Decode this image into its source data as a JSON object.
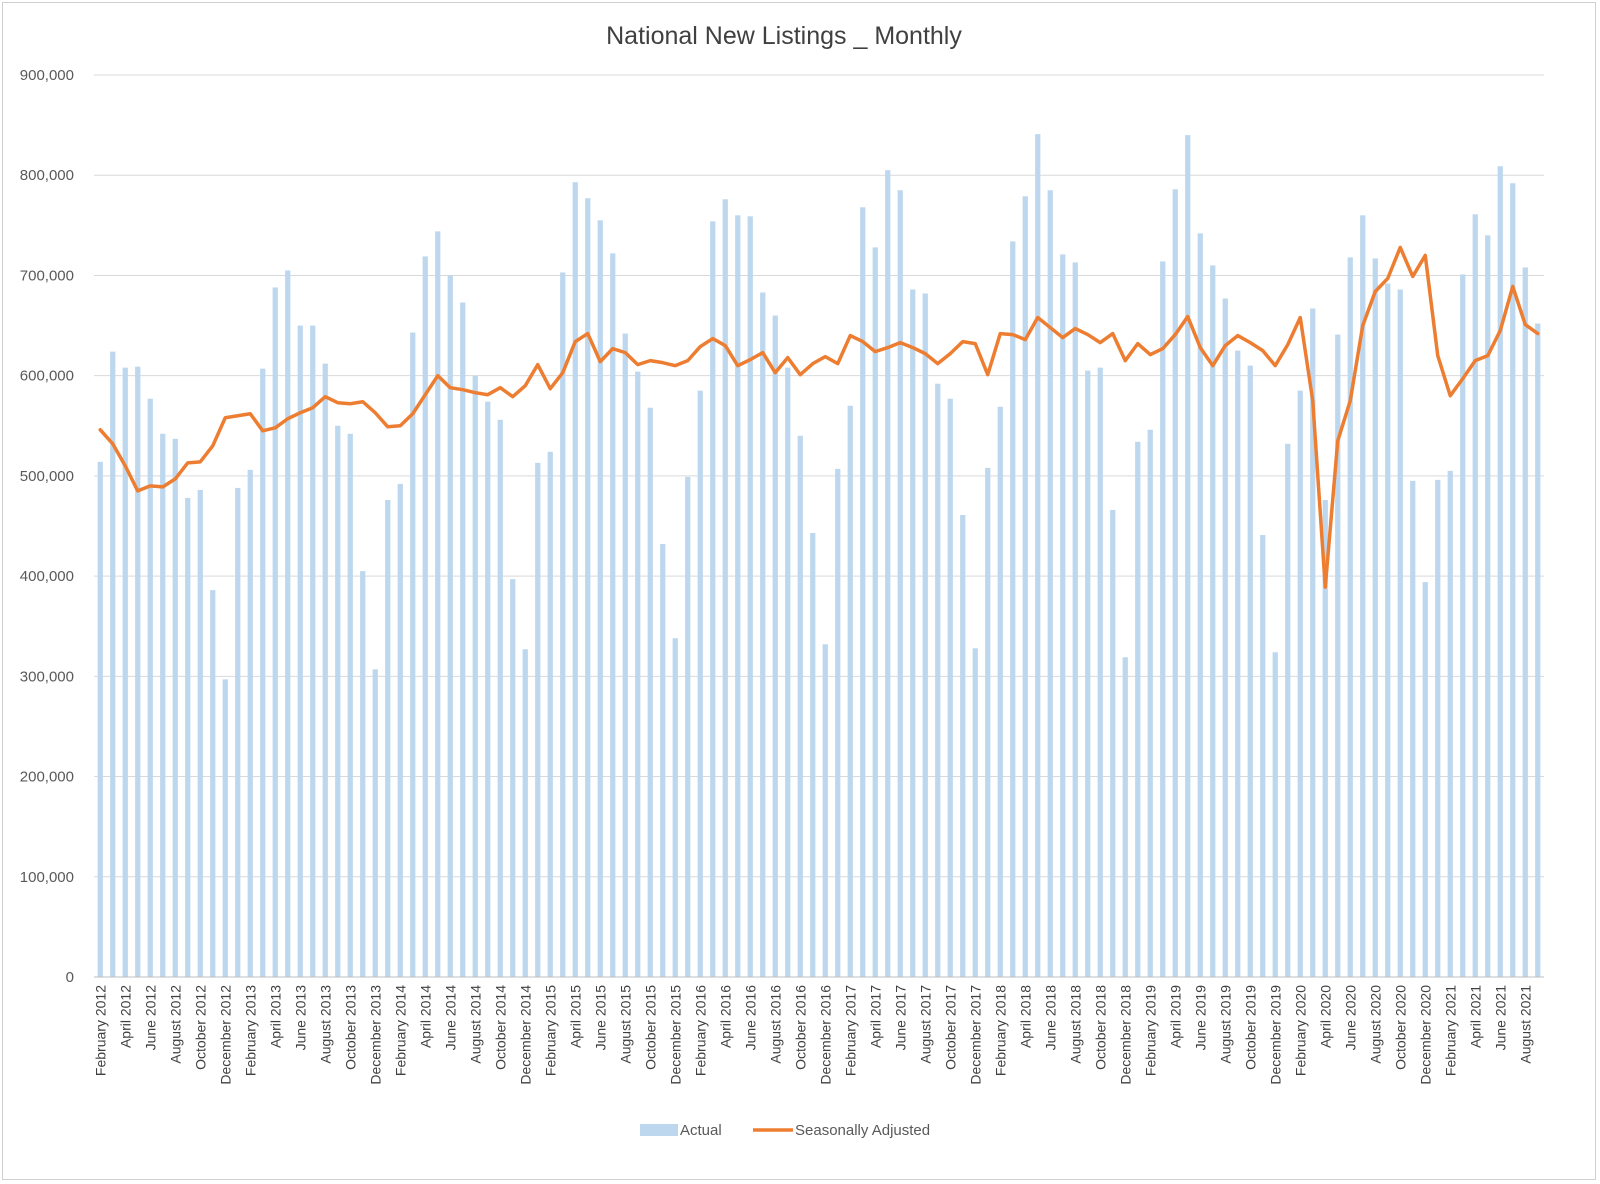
{
  "chart_data": {
    "type": "bar",
    "title": "National New Listings _ Monthly",
    "xlabel": "",
    "ylabel": "",
    "ylim": [
      0,
      900000
    ],
    "y_ticks": [
      "0",
      "100,000",
      "200,000",
      "300,000",
      "400,000",
      "500,000",
      "600,000",
      "700,000",
      "800,000",
      "900,000"
    ],
    "y_tick_values": [
      0,
      100000,
      200000,
      300000,
      400000,
      500000,
      600000,
      700000,
      800000,
      900000
    ],
    "grid": true,
    "legend_position": "bottom",
    "categories": [
      "February 2012",
      "March 2012",
      "April 2012",
      "May 2012",
      "June 2012",
      "July 2012",
      "August 2012",
      "September 2012",
      "October 2012",
      "November 2012",
      "December 2012",
      "January 2013",
      "February 2013",
      "March 2013",
      "April 2013",
      "May 2013",
      "June 2013",
      "July 2013",
      "August 2013",
      "September 2013",
      "October 2013",
      "November 2013",
      "December 2013",
      "January 2014",
      "February 2014",
      "March 2014",
      "April 2014",
      "May 2014",
      "June 2014",
      "July 2014",
      "August 2014",
      "September 2014",
      "October 2014",
      "November 2014",
      "December 2014",
      "January 2015",
      "February 2015",
      "March 2015",
      "April 2015",
      "May 2015",
      "June 2015",
      "July 2015",
      "August 2015",
      "September 2015",
      "October 2015",
      "November 2015",
      "December 2015",
      "January 2016",
      "February 2016",
      "March 2016",
      "April 2016",
      "May 2016",
      "June 2016",
      "July 2016",
      "August 2016",
      "September 2016",
      "October 2016",
      "November 2016",
      "December 2016",
      "January 2017",
      "February 2017",
      "March 2017",
      "April 2017",
      "May 2017",
      "June 2017",
      "July 2017",
      "August 2017",
      "September 2017",
      "October 2017",
      "November 2017",
      "December 2017",
      "January 2018",
      "February 2018",
      "March 2018",
      "April 2018",
      "May 2018",
      "June 2018",
      "July 2018",
      "August 2018",
      "September 2018",
      "October 2018",
      "November 2018",
      "December 2018",
      "January 2019",
      "February 2019",
      "March 2019",
      "April 2019",
      "May 2019",
      "June 2019",
      "July 2019",
      "August 2019",
      "September 2019",
      "October 2019",
      "November 2019",
      "December 2019",
      "January 2020",
      "February 2020",
      "March 2020",
      "April 2020",
      "May 2020",
      "June 2020",
      "July 2020",
      "August 2020",
      "September 2020",
      "October 2020",
      "November 2020",
      "December 2020",
      "January 2021",
      "February 2021",
      "March 2021",
      "April 2021",
      "May 2021",
      "June 2021",
      "July 2021",
      "August 2021",
      "September 2021"
    ],
    "tick_labels": [
      "February 2012",
      "April 2012",
      "June 2012",
      "August 2012",
      "October 2012",
      "December 2012",
      "February 2013",
      "April 2013",
      "June 2013",
      "August 2013",
      "October 2013",
      "December 2013",
      "February 2014",
      "April 2014",
      "June 2014",
      "August 2014",
      "October 2014",
      "December 2014",
      "February 2015",
      "April 2015",
      "June 2015",
      "August 2015",
      "October 2015",
      "December 2015",
      "February 2016",
      "April 2016",
      "June 2016",
      "August 2016",
      "October 2016",
      "December 2016",
      "February 2017",
      "April 2017",
      "June 2017",
      "August 2017",
      "October 2017",
      "December 2017",
      "February 2018",
      "April 2018",
      "June 2018",
      "August 2018",
      "October 2018",
      "December 2018",
      "February 2019",
      "April 2019",
      "June 2019",
      "August 2019",
      "October 2019",
      "December 2019",
      "February 2020",
      "April 2020",
      "June 2020",
      "August 2020",
      "October 2020",
      "December 2020",
      "February 2021",
      "April 2021",
      "June 2021",
      "August 2021"
    ],
    "series": [
      {
        "name": "Actual",
        "type": "bar",
        "color": "#bdd7ee",
        "values": [
          514000,
          624000,
          608000,
          609000,
          577000,
          542000,
          537000,
          478000,
          486000,
          386000,
          297000,
          488000,
          506000,
          607000,
          688000,
          705000,
          650000,
          650000,
          612000,
          550000,
          542000,
          405000,
          307000,
          476000,
          492000,
          643000,
          719000,
          744000,
          700000,
          673000,
          600000,
          574000,
          556000,
          397000,
          327000,
          513000,
          524000,
          703000,
          793000,
          777000,
          755000,
          722000,
          642000,
          604000,
          568000,
          432000,
          338000,
          499000,
          585000,
          754000,
          776000,
          760000,
          759000,
          683000,
          660000,
          608000,
          540000,
          443000,
          332000,
          507000,
          570000,
          768000,
          728000,
          805000,
          785000,
          686000,
          682000,
          592000,
          577000,
          461000,
          328000,
          508000,
          569000,
          734000,
          779000,
          841000,
          785000,
          721000,
          713000,
          605000,
          608000,
          466000,
          319000,
          534000,
          546000,
          714000,
          786000,
          840000,
          742000,
          710000,
          677000,
          625000,
          610000,
          441000,
          324000,
          532000,
          585000,
          667000,
          476000,
          641000,
          718000,
          760000,
          717000,
          692000,
          686000,
          495000,
          394000,
          496000,
          505000,
          701000,
          761000,
          740000,
          809000,
          792000,
          708000,
          652000
        ]
      },
      {
        "name": "Seasonally Adjusted",
        "type": "line",
        "color": "#ed7d31",
        "values": [
          546000,
          532000,
          510000,
          485000,
          490000,
          489000,
          497000,
          513000,
          514000,
          530000,
          558000,
          560000,
          562000,
          545000,
          548000,
          557000,
          563000,
          568000,
          579000,
          573000,
          572000,
          574000,
          563000,
          549000,
          550000,
          562000,
          581000,
          600000,
          588000,
          586000,
          583000,
          581000,
          588000,
          579000,
          590000,
          611000,
          587000,
          603000,
          634000,
          642000,
          614000,
          627000,
          623000,
          611000,
          615000,
          613000,
          610000,
          615000,
          629000,
          637000,
          630000,
          610000,
          616000,
          623000,
          603000,
          618000,
          601000,
          612000,
          619000,
          612000,
          640000,
          634000,
          624000,
          628000,
          633000,
          628000,
          622000,
          612000,
          622000,
          634000,
          632000,
          601000,
          642000,
          641000,
          636000,
          658000,
          648000,
          638000,
          647000,
          641000,
          633000,
          642000,
          615000,
          632000,
          621000,
          627000,
          641000,
          659000,
          628000,
          610000,
          630000,
          640000,
          633000,
          625000,
          610000,
          631000,
          658000,
          575000,
          389000,
          535000,
          575000,
          650000,
          684000,
          697000,
          728000,
          699000,
          720000,
          620000,
          580000,
          597000,
          615000,
          620000,
          645000,
          689000,
          651000,
          642000
        ]
      }
    ]
  }
}
